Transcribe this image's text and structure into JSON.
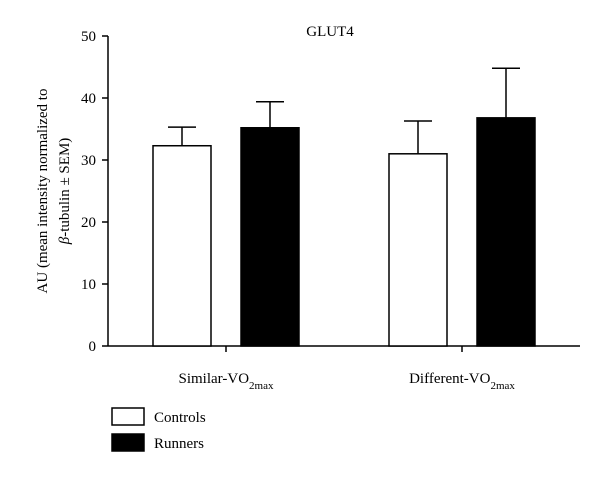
{
  "chart_data": {
    "type": "bar",
    "title": "GLUT4",
    "ylabel_line1": "AU (mean intensity normalized to",
    "ylabel_line2_greek": "β",
    "ylabel_line2_rest": "-tubulin ± SEM)",
    "ylim": [
      0,
      50
    ],
    "yticks": [
      0,
      10,
      20,
      30,
      40,
      50
    ],
    "categories": [
      {
        "base": "Similar-VO",
        "sub": "2max"
      },
      {
        "base": "Different-VO",
        "sub": "2max"
      }
    ],
    "series": [
      {
        "name": "Controls",
        "color": "#ffffff",
        "values": [
          32.3,
          31.0
        ],
        "errors": [
          3.0,
          5.3
        ]
      },
      {
        "name": "Runners",
        "color": "#000000",
        "values": [
          35.2,
          36.8
        ],
        "errors": [
          4.2,
          8.0
        ]
      }
    ],
    "legend_position": "bottom-left",
    "grid": false
  }
}
